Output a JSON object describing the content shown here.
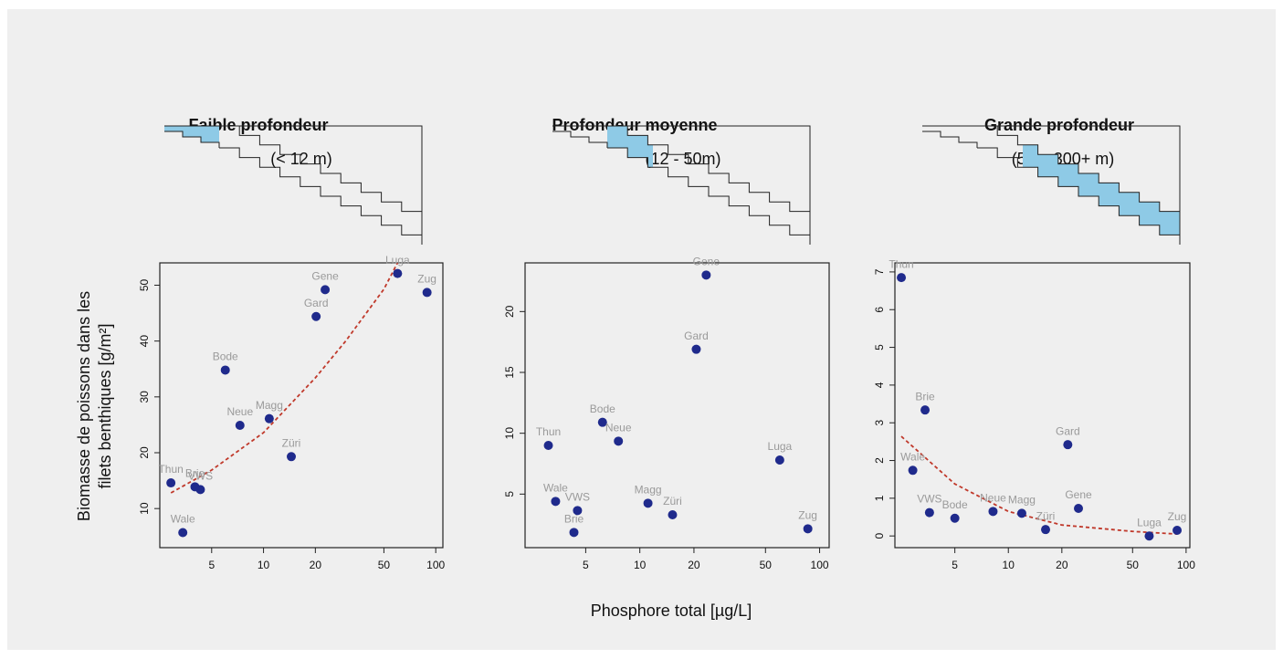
{
  "x_label": "Phosphore total [µg/L]",
  "y_label": [
    "Biomasse de poissons dans les",
    "filets benthiques [g/m²]"
  ],
  "chart_data": [
    {
      "type": "scatter",
      "title": "Faible profondeur",
      "subtitle": "(< 12 m)",
      "log_x": true,
      "color": "#1f2a8c",
      "labels": [
        "Thun",
        "Wale",
        "Brie",
        "VWS",
        "Bode",
        "Neue",
        "Magg",
        "Züri",
        "Gard",
        "Gene",
        "Luga",
        "Zug"
      ],
      "x": [
        2.9,
        3.4,
        4.0,
        4.3,
        6.0,
        7.3,
        10.8,
        14.5,
        20.2,
        22.8,
        60,
        89
      ],
      "values": [
        14.6,
        5.7,
        13.9,
        13.4,
        34.8,
        24.9,
        26.1,
        19.3,
        44.4,
        49.2,
        52.1,
        48.7
      ],
      "fit": {
        "color": "#c0392b",
        "x": [
          2.9,
          5,
          10,
          20,
          30,
          50,
          60
        ],
        "values": [
          12.8,
          16.9,
          23.6,
          33.4,
          40,
          49.3,
          54
        ]
      },
      "xlim": [
        2.5,
        110
      ],
      "ylim": [
        3,
        54
      ],
      "xticks": [
        5,
        10,
        20,
        50,
        100
      ],
      "yticks": [
        10,
        20,
        30,
        40,
        50
      ]
    },
    {
      "type": "scatter",
      "title": "Profondeur moyenne",
      "subtitle": "(12 - 50m)",
      "log_x": true,
      "color": "#1f2a8c",
      "labels": [
        "Thun",
        "Wale",
        "VWS",
        "Brie",
        "Bode",
        "Neue",
        "Magg",
        "Züri",
        "Gard",
        "Gene",
        "Luga",
        "Zug"
      ],
      "x": [
        3.1,
        3.4,
        4.5,
        4.3,
        6.2,
        7.6,
        11.1,
        15.2,
        20.6,
        23.4,
        60,
        86
      ],
      "values": [
        9.0,
        4.4,
        3.65,
        1.85,
        10.9,
        9.35,
        4.25,
        3.3,
        16.9,
        23.0,
        7.8,
        2.15
      ],
      "xlim": [
        2.3,
        113
      ],
      "ylim": [
        0.6,
        24
      ],
      "xticks": [
        5,
        10,
        20,
        50,
        100
      ],
      "yticks": [
        5,
        10,
        15,
        20
      ]
    },
    {
      "type": "scatter",
      "title": "Grande profondeur",
      "subtitle": "(50 – 300+ m)",
      "log_x": true,
      "color": "#1f2a8c",
      "labels": [
        "Thun",
        "Wale",
        "Brie",
        "VWS",
        "Bode",
        "Neue",
        "Magg",
        "Züri",
        "Gard",
        "Gene",
        "Luga",
        "Zug"
      ],
      "x": [
        2.5,
        2.9,
        3.4,
        3.6,
        5.0,
        8.2,
        11.9,
        16.2,
        21.6,
        24.8,
        62,
        89
      ],
      "values": [
        6.85,
        1.74,
        3.34,
        0.62,
        0.47,
        0.65,
        0.6,
        0.17,
        2.42,
        0.73,
        0.0,
        0.15
      ],
      "fit": {
        "color": "#c0392b",
        "x": [
          2.5,
          5,
          10,
          20,
          50,
          89
        ],
        "values": [
          2.64,
          1.38,
          0.65,
          0.29,
          0.12,
          0.05
        ]
      },
      "xlim": [
        2.3,
        105
      ],
      "ylim": [
        -0.31,
        7.24
      ],
      "xticks": [
        5,
        10,
        20,
        50,
        100
      ],
      "yticks": [
        0,
        1,
        2,
        3,
        4,
        5,
        6,
        7
      ]
    }
  ]
}
